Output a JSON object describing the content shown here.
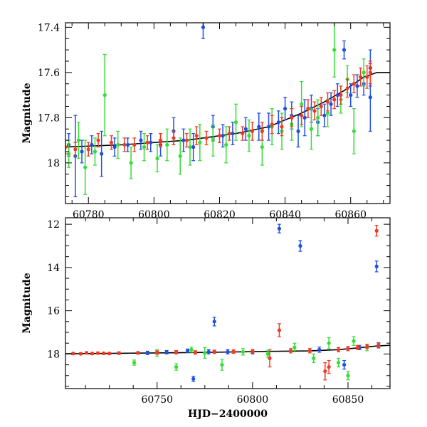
{
  "chart_data": [
    {
      "type": "scatter",
      "panel": "top",
      "title": "",
      "xlabel": "",
      "ylabel": "Magnitude",
      "xlim": [
        60773,
        60872
      ],
      "ylim": [
        17.38,
        18.18
      ],
      "y_inverted": true,
      "x_ticks": [
        60780,
        60800,
        60820,
        60840,
        60860
      ],
      "y_ticks": [
        17.4,
        17.6,
        17.8,
        18
      ],
      "y_tick_labels": [
        "17.4",
        "17.6",
        "17.8",
        "18"
      ],
      "error_bars": true,
      "model_curve": {
        "color": "#000000",
        "points": [
          [
            60773,
            17.93
          ],
          [
            60790,
            17.92
          ],
          [
            60810,
            17.9
          ],
          [
            60825,
            17.87
          ],
          [
            60835,
            17.84
          ],
          [
            60845,
            17.78
          ],
          [
            60852,
            17.73
          ],
          [
            60858,
            17.68
          ],
          [
            60864,
            17.62
          ],
          [
            60868,
            17.6
          ],
          [
            60872,
            17.6
          ]
        ]
      },
      "series": [
        {
          "color": "#1f4fe0",
          "points": [
            [
              60774,
              17.92,
              0.05
            ],
            [
              60776,
              17.97,
              0.18
            ],
            [
              60778,
              17.95,
              0.05
            ],
            [
              60781,
              17.92,
              0.04
            ],
            [
              60784,
              17.96,
              0.1
            ],
            [
              60788,
              17.93,
              0.04
            ],
            [
              60792,
              17.92,
              0.03
            ],
            [
              60796,
              17.9,
              0.04
            ],
            [
              60799,
              17.91,
              0.04
            ],
            [
              60802,
              17.92,
              0.05
            ],
            [
              60806,
              17.86,
              0.06
            ],
            [
              60809,
              17.9,
              0.05
            ],
            [
              60812,
              17.93,
              0.06
            ],
            [
              60815,
              17.4,
              0.05
            ],
            [
              60818,
              17.84,
              0.05
            ],
            [
              60821,
              17.88,
              0.05
            ],
            [
              60824,
              17.87,
              0.05
            ],
            [
              60828,
              17.85,
              0.05
            ],
            [
              60832,
              17.84,
              0.06
            ],
            [
              60835,
              17.84,
              0.06
            ],
            [
              60838,
              17.82,
              0.05
            ],
            [
              60840,
              17.76,
              0.05
            ],
            [
              60842,
              17.79,
              0.06
            ],
            [
              60844,
              17.86,
              0.07
            ],
            [
              60846,
              17.8,
              0.08
            ],
            [
              60848,
              17.76,
              0.06
            ],
            [
              60850,
              17.82,
              0.06
            ],
            [
              60852,
              17.79,
              0.05
            ],
            [
              60854,
              17.74,
              0.05
            ],
            [
              60856,
              17.7,
              0.05
            ],
            [
              60858,
              17.5,
              0.04
            ],
            [
              60860,
              17.7,
              0.05
            ],
            [
              60862,
              17.66,
              0.05
            ],
            [
              60864,
              17.65,
              0.05
            ],
            [
              60866,
              17.71,
              0.15
            ],
            [
              60866,
              17.58,
              0.08
            ]
          ]
        },
        {
          "color": "#33dd33",
          "points": [
            [
              60774,
              17.96,
              0.06
            ],
            [
              60777,
              17.9,
              0.08
            ],
            [
              60779,
              18.02,
              0.12
            ],
            [
              60782,
              17.95,
              0.06
            ],
            [
              60785,
              17.7,
              0.18
            ],
            [
              60789,
              17.92,
              0.06
            ],
            [
              60793,
              18.0,
              0.07
            ],
            [
              60797,
              17.93,
              0.06
            ],
            [
              60801,
              17.98,
              0.06
            ],
            [
              60804,
              17.92,
              0.07
            ],
            [
              60808,
              17.97,
              0.08
            ],
            [
              60811,
              17.93,
              0.08
            ],
            [
              60814,
              17.91,
              0.08
            ],
            [
              60818,
              17.9,
              0.07
            ],
            [
              60822,
              17.92,
              0.08
            ],
            [
              60825,
              17.82,
              0.08
            ],
            [
              60829,
              17.88,
              0.07
            ],
            [
              60833,
              17.93,
              0.08
            ],
            [
              60836,
              17.84,
              0.08
            ],
            [
              60839,
              17.86,
              0.08
            ],
            [
              60842,
              17.83,
              0.07
            ],
            [
              60845,
              17.74,
              0.1
            ],
            [
              60848,
              17.85,
              0.09
            ],
            [
              60850,
              17.8,
              0.08
            ],
            [
              60853,
              17.78,
              0.06
            ],
            [
              60855,
              17.5,
              0.12
            ],
            [
              60857,
              17.72,
              0.06
            ],
            [
              60859,
              17.63,
              0.06
            ],
            [
              60861,
              17.86,
              0.1
            ],
            [
              60864,
              17.6,
              0.06
            ]
          ]
        },
        {
          "color": "#ee3a22",
          "points": [
            [
              60773,
              17.93,
              0.03
            ],
            [
              60776,
              17.94,
              0.03
            ],
            [
              60780,
              17.94,
              0.03
            ],
            [
              60783,
              17.9,
              0.03
            ],
            [
              60787,
              17.91,
              0.03
            ],
            [
              60791,
              17.92,
              0.03
            ],
            [
              60794,
              17.92,
              0.03
            ],
            [
              60798,
              17.91,
              0.03
            ],
            [
              60802,
              17.9,
              0.03
            ],
            [
              60806,
              17.89,
              0.03
            ],
            [
              60810,
              17.9,
              0.03
            ],
            [
              60813,
              17.88,
              0.04
            ],
            [
              60816,
              17.89,
              0.03
            ],
            [
              60820,
              17.88,
              0.03
            ],
            [
              60823,
              17.87,
              0.03
            ],
            [
              60827,
              17.87,
              0.03
            ],
            [
              60830,
              17.86,
              0.04
            ],
            [
              60833,
              17.86,
              0.04
            ],
            [
              60836,
              17.83,
              0.04
            ],
            [
              60839,
              17.84,
              0.04
            ],
            [
              60842,
              17.8,
              0.04
            ],
            [
              60845,
              17.79,
              0.04
            ],
            [
              60847,
              17.76,
              0.04
            ],
            [
              60849,
              17.77,
              0.04
            ],
            [
              60851,
              17.75,
              0.04
            ],
            [
              60853,
              17.73,
              0.04
            ],
            [
              60855,
              17.72,
              0.04
            ],
            [
              60857,
              17.7,
              0.04
            ],
            [
              60859,
              17.67,
              0.04
            ],
            [
              60861,
              17.65,
              0.04
            ],
            [
              60863,
              17.62,
              0.04
            ],
            [
              60865,
              17.62,
              0.05
            ],
            [
              60866,
              17.6,
              0.05
            ]
          ]
        }
      ]
    },
    {
      "type": "scatter",
      "panel": "bottom",
      "title": "",
      "xlabel": "HJD−2400000",
      "ylabel": "Magnitude",
      "xlim": [
        60702,
        60872
      ],
      "ylim": [
        11.7,
        19.6
      ],
      "y_inverted": true,
      "x_ticks": [
        60750,
        60800,
        60850
      ],
      "y_ticks": [
        12,
        14,
        16,
        18
      ],
      "y_tick_labels": [
        "12",
        "14",
        "16",
        "18"
      ],
      "error_bars": true,
      "model_curve": {
        "color": "#000000",
        "points": [
          [
            60702,
            17.99
          ],
          [
            60740,
            17.96
          ],
          [
            60780,
            17.92
          ],
          [
            60810,
            17.88
          ],
          [
            60830,
            17.86
          ],
          [
            60845,
            17.8
          ],
          [
            60855,
            17.72
          ],
          [
            60865,
            17.63
          ],
          [
            60872,
            17.6
          ]
        ]
      },
      "series": [
        {
          "color": "#1f4fe0",
          "points": [
            [
              60745,
              17.95,
              0.08
            ],
            [
              60755,
              17.92,
              0.08
            ],
            [
              60766,
              17.85,
              0.08
            ],
            [
              60769,
              19.15,
              0.12
            ],
            [
              60777,
              17.9,
              0.1
            ],
            [
              60780,
              16.5,
              0.2
            ],
            [
              60787,
              17.9,
              0.1
            ],
            [
              60800,
              17.9,
              0.1
            ],
            [
              60814,
              12.2,
              0.2
            ],
            [
              60825,
              13.0,
              0.25
            ],
            [
              60835,
              17.8,
              0.12
            ],
            [
              60848,
              18.5,
              0.2
            ],
            [
              60856,
              17.7,
              0.1
            ],
            [
              60865,
              13.95,
              0.25
            ],
            [
              60866,
              17.6,
              0.12
            ]
          ]
        },
        {
          "color": "#33dd33",
          "points": [
            [
              60738,
              18.4,
              0.12
            ],
            [
              60750,
              17.95,
              0.15
            ],
            [
              60760,
              18.6,
              0.15
            ],
            [
              60768,
              17.8,
              0.12
            ],
            [
              60775,
              17.95,
              0.25
            ],
            [
              60784,
              18.5,
              0.25
            ],
            [
              60795,
              17.9,
              0.15
            ],
            [
              60808,
              18.0,
              0.15
            ],
            [
              60822,
              17.7,
              0.2
            ],
            [
              60832,
              18.2,
              0.2
            ],
            [
              60840,
              17.5,
              0.25
            ],
            [
              60845,
              18.4,
              0.2
            ],
            [
              60850,
              19.0,
              0.2
            ],
            [
              60853,
              17.4,
              0.2
            ],
            [
              60860,
              17.7,
              0.15
            ]
          ]
        },
        {
          "color": "#ee3a22",
          "points": [
            [
              60706,
              17.98,
              0.05
            ],
            [
              60710,
              17.99,
              0.05
            ],
            [
              60713,
              17.95,
              0.05
            ],
            [
              60716,
              17.98,
              0.05
            ],
            [
              60719,
              17.96,
              0.05
            ],
            [
              60722,
              17.97,
              0.05
            ],
            [
              60725,
              17.98,
              0.05
            ],
            [
              60730,
              17.96,
              0.06
            ],
            [
              60740,
              17.95,
              0.06
            ],
            [
              60750,
              17.93,
              0.08
            ],
            [
              60760,
              17.92,
              0.08
            ],
            [
              60770,
              17.93,
              0.08
            ],
            [
              60780,
              17.9,
              0.08
            ],
            [
              60790,
              17.89,
              0.08
            ],
            [
              60800,
              17.88,
              0.08
            ],
            [
              60809,
              18.2,
              0.4
            ],
            [
              60814,
              16.9,
              0.3
            ],
            [
              60820,
              17.85,
              0.1
            ],
            [
              60830,
              17.85,
              0.1
            ],
            [
              60838,
              18.8,
              0.4
            ],
            [
              60840,
              18.6,
              0.3
            ],
            [
              60845,
              17.8,
              0.1
            ],
            [
              60850,
              17.75,
              0.1
            ],
            [
              60855,
              17.7,
              0.1
            ],
            [
              60860,
              17.65,
              0.1
            ],
            [
              60865,
              12.3,
              0.25
            ],
            [
              60866,
              17.6,
              0.1
            ]
          ]
        }
      ]
    }
  ]
}
